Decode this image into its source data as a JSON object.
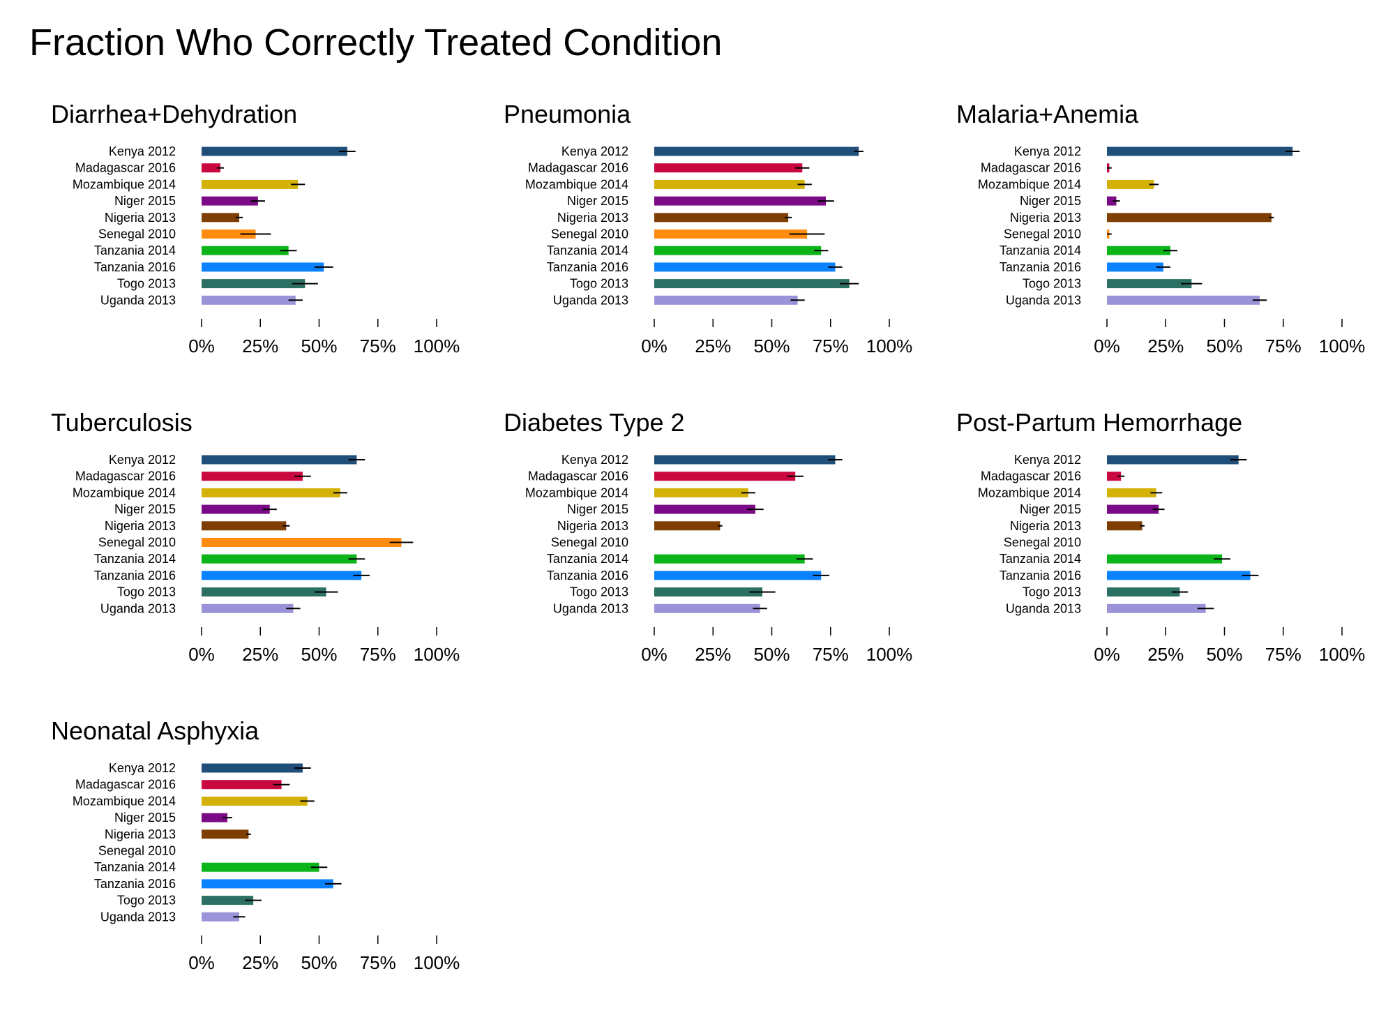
{
  "title": "Fraction Who Correctly Treated Condition",
  "series_colors": {
    "Kenya 2012": "#1f4e79",
    "Madagascar 2016": "#c8083e",
    "Mozambique 2014": "#d4b106",
    "Niger 2015": "#7b0a86",
    "Nigeria 2013": "#7f3f04",
    "Senegal 2010": "#ff8c10",
    "Tanzania 2014": "#0bb519",
    "Tanzania 2016": "#0b82ff",
    "Togo 2013": "#2b7063",
    "Uganda 2013": "#9a93d8"
  },
  "chart_data": [
    {
      "type": "bar",
      "orientation": "horizontal",
      "title": "Diarrhea+Dehydration",
      "categories": [
        "Kenya 2012",
        "Madagascar 2016",
        "Mozambique 2014",
        "Niger 2015",
        "Nigeria 2013",
        "Senegal 2010",
        "Tanzania 2014",
        "Tanzania 2016",
        "Togo 2013",
        "Uganda 2013"
      ],
      "values": [
        0.62,
        0.08,
        0.41,
        0.24,
        0.16,
        0.23,
        0.37,
        0.52,
        0.44,
        0.4
      ],
      "error": [
        0.035,
        0.015,
        0.03,
        0.03,
        0.015,
        0.065,
        0.035,
        0.04,
        0.055,
        0.03
      ],
      "xlim": [
        0,
        1
      ],
      "xticks": [
        "0%",
        "25%",
        "50%",
        "75%",
        "100%"
      ],
      "grid": false
    },
    {
      "type": "bar",
      "orientation": "horizontal",
      "title": "Pneumonia",
      "categories": [
        "Kenya 2012",
        "Madagascar 2016",
        "Mozambique 2014",
        "Niger 2015",
        "Nigeria 2013",
        "Senegal 2010",
        "Tanzania 2014",
        "Tanzania 2016",
        "Togo 2013",
        "Uganda 2013"
      ],
      "values": [
        0.87,
        0.63,
        0.64,
        0.73,
        0.57,
        0.65,
        0.71,
        0.77,
        0.83,
        0.61
      ],
      "error": [
        0.02,
        0.03,
        0.03,
        0.035,
        0.015,
        0.075,
        0.03,
        0.03,
        0.04,
        0.03
      ],
      "xlim": [
        0,
        1
      ],
      "xticks": [
        "0%",
        "25%",
        "50%",
        "75%",
        "100%"
      ],
      "grid": false
    },
    {
      "type": "bar",
      "orientation": "horizontal",
      "title": "Malaria+Anemia",
      "categories": [
        "Kenya 2012",
        "Madagascar 2016",
        "Mozambique 2014",
        "Niger 2015",
        "Nigeria 2013",
        "Senegal 2010",
        "Tanzania 2014",
        "Tanzania 2016",
        "Togo 2013",
        "Uganda 2013"
      ],
      "values": [
        0.79,
        0.01,
        0.2,
        0.04,
        0.7,
        0.01,
        0.27,
        0.24,
        0.36,
        0.65
      ],
      "error": [
        0.03,
        0.01,
        0.02,
        0.015,
        0.01,
        0.01,
        0.03,
        0.03,
        0.045,
        0.03
      ],
      "xlim": [
        0,
        1
      ],
      "xticks": [
        "0%",
        "25%",
        "50%",
        "75%",
        "100%"
      ],
      "grid": false
    },
    {
      "type": "bar",
      "orientation": "horizontal",
      "title": "Tuberculosis",
      "categories": [
        "Kenya 2012",
        "Madagascar 2016",
        "Mozambique 2014",
        "Niger 2015",
        "Nigeria 2013",
        "Senegal 2010",
        "Tanzania 2014",
        "Tanzania 2016",
        "Togo 2013",
        "Uganda 2013"
      ],
      "values": [
        0.66,
        0.43,
        0.59,
        0.29,
        0.36,
        0.85,
        0.66,
        0.68,
        0.53,
        0.39
      ],
      "error": [
        0.035,
        0.035,
        0.03,
        0.03,
        0.015,
        0.05,
        0.035,
        0.035,
        0.05,
        0.03
      ],
      "xlim": [
        0,
        1
      ],
      "xticks": [
        "0%",
        "25%",
        "50%",
        "75%",
        "100%"
      ],
      "grid": false
    },
    {
      "type": "bar",
      "orientation": "horizontal",
      "title": "Diabetes Type 2",
      "categories": [
        "Kenya 2012",
        "Madagascar 2016",
        "Mozambique 2014",
        "Niger 2015",
        "Nigeria 2013",
        "Senegal 2010",
        "Tanzania 2014",
        "Tanzania 2016",
        "Togo 2013",
        "Uganda 2013"
      ],
      "values": [
        0.77,
        0.6,
        0.4,
        0.43,
        0.28,
        null,
        0.64,
        0.71,
        0.46,
        0.45
      ],
      "error": [
        0.03,
        0.035,
        0.03,
        0.035,
        0.01,
        null,
        0.035,
        0.035,
        0.055,
        0.03
      ],
      "xlim": [
        0,
        1
      ],
      "xticks": [
        "0%",
        "25%",
        "50%",
        "75%",
        "100%"
      ],
      "grid": false
    },
    {
      "type": "bar",
      "orientation": "horizontal",
      "title": "Post-Partum Hemorrhage",
      "categories": [
        "Kenya 2012",
        "Madagascar 2016",
        "Mozambique 2014",
        "Niger 2015",
        "Nigeria 2013",
        "Senegal 2010",
        "Tanzania 2014",
        "Tanzania 2016",
        "Togo 2013",
        "Uganda 2013"
      ],
      "values": [
        0.56,
        0.06,
        0.21,
        0.22,
        0.15,
        null,
        0.49,
        0.61,
        0.31,
        0.42
      ],
      "error": [
        0.035,
        0.015,
        0.025,
        0.025,
        0.01,
        null,
        0.035,
        0.035,
        0.035,
        0.035
      ],
      "xlim": [
        0,
        1
      ],
      "xticks": [
        "0%",
        "25%",
        "50%",
        "75%",
        "100%"
      ],
      "grid": false
    },
    {
      "type": "bar",
      "orientation": "horizontal",
      "title": "Neonatal Asphyxia",
      "categories": [
        "Kenya 2012",
        "Madagascar 2016",
        "Mozambique 2014",
        "Niger 2015",
        "Nigeria 2013",
        "Senegal 2010",
        "Tanzania 2014",
        "Tanzania 2016",
        "Togo 2013",
        "Uganda 2013"
      ],
      "values": [
        0.43,
        0.34,
        0.45,
        0.11,
        0.2,
        null,
        0.5,
        0.56,
        0.22,
        0.16
      ],
      "error": [
        0.035,
        0.035,
        0.03,
        0.02,
        0.01,
        null,
        0.035,
        0.035,
        0.035,
        0.025
      ],
      "xlim": [
        0,
        1
      ],
      "xticks": [
        "0%",
        "25%",
        "50%",
        "75%",
        "100%"
      ],
      "grid": false
    }
  ]
}
